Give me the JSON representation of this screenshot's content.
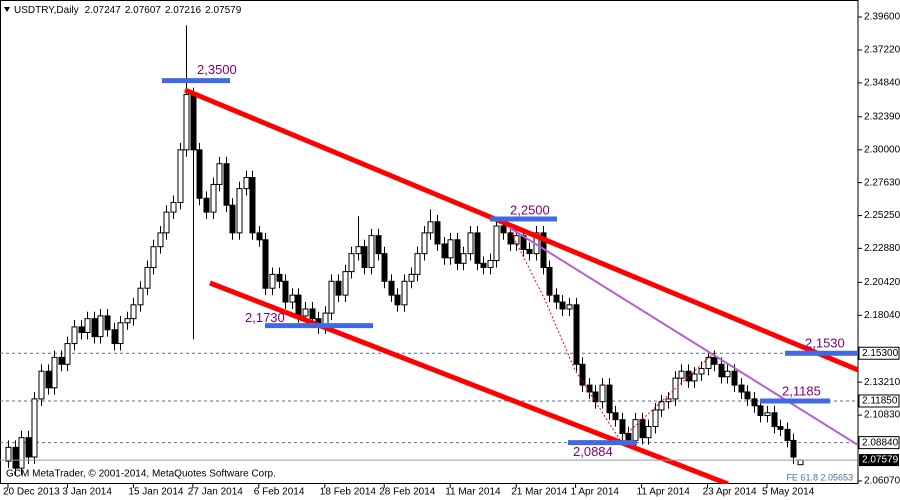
{
  "chart_data": {
    "type": "candlestick",
    "symbol": "USDTRY,Daily",
    "footer": "GCM MetaTrader, © 2001-2014, MetaQuotes Software Corp.",
    "fib_label": "FE 61.8 2.05653",
    "categories": [
      "20 Dec 2013",
      null,
      null,
      null,
      null,
      null,
      null,
      null,
      null,
      "3 Jan 2014",
      null,
      null,
      null,
      null,
      null,
      null,
      null,
      null,
      null,
      "15 Jan 2014",
      null,
      null,
      null,
      null,
      null,
      null,
      null,
      null,
      "27 Jan 2014",
      null,
      null,
      null,
      null,
      null,
      null,
      null,
      null,
      null,
      "6 Feb 2014",
      null,
      null,
      null,
      null,
      null,
      null,
      null,
      null,
      null,
      "18 Feb 2014",
      null,
      null,
      null,
      null,
      null,
      null,
      null,
      null,
      "28 Feb 2014",
      null,
      null,
      null,
      null,
      null,
      null,
      null,
      null,
      null,
      "11 Mar 2014",
      null,
      null,
      null,
      null,
      null,
      null,
      null,
      null,
      null,
      "21 Mar 2014",
      null,
      null,
      null,
      null,
      null,
      null,
      null,
      null,
      "1 Apr 2014",
      null,
      null,
      null,
      null,
      null,
      null,
      null,
      null,
      null,
      "11 Apr 2014",
      null,
      null,
      null,
      null,
      null,
      null,
      null,
      null,
      null,
      "23 Apr 2014",
      null,
      null,
      null,
      null,
      null,
      null,
      null,
      null,
      "5 May 2014",
      null,
      null,
      null,
      null,
      null
    ],
    "open": [
      2.075,
      2.085,
      2.07,
      2.092,
      2.078,
      2.12,
      2.14,
      2.128,
      2.15,
      2.145,
      2.16,
      2.172,
      2.168,
      2.178,
      2.165,
      2.18,
      2.17,
      2.16,
      2.175,
      2.178,
      2.188,
      2.2,
      2.215,
      2.23,
      2.24,
      2.255,
      2.262,
      2.3,
      2.34,
      2.3,
      2.265,
      2.255,
      2.275,
      2.29,
      2.26,
      2.24,
      2.272,
      2.28,
      2.24,
      2.235,
      2.2,
      2.21,
      2.205,
      2.19,
      2.195,
      2.18,
      2.185,
      2.178,
      2.172,
      2.182,
      2.205,
      2.195,
      2.212,
      2.225,
      2.23,
      2.215,
      2.238,
      2.225,
      2.205,
      2.195,
      2.188,
      2.205,
      2.21,
      2.225,
      2.24,
      2.248,
      2.232,
      2.222,
      2.235,
      2.218,
      2.225,
      2.24,
      2.218,
      2.215,
      2.22,
      2.245,
      2.24,
      2.232,
      2.238,
      2.228,
      2.225,
      2.24,
      2.215,
      2.195,
      2.19,
      2.185,
      2.188,
      2.145,
      2.13,
      2.125,
      2.118,
      2.13,
      2.11,
      2.105,
      2.095,
      2.09,
      2.105,
      2.092,
      2.1,
      2.112,
      2.118,
      2.12,
      2.135,
      2.14,
      2.133,
      2.138,
      2.142,
      2.15,
      2.145,
      2.136,
      2.14,
      2.13,
      2.125,
      2.12,
      2.115,
      2.108,
      2.11,
      2.1,
      2.098,
      2.09,
      2.07247
    ],
    "high": [
      2.09,
      2.09,
      2.097,
      2.097,
      2.125,
      2.145,
      2.145,
      2.155,
      2.155,
      2.165,
      2.177,
      2.177,
      2.183,
      2.183,
      2.185,
      2.185,
      2.175,
      2.18,
      2.183,
      2.193,
      2.205,
      2.22,
      2.235,
      2.245,
      2.26,
      2.267,
      2.305,
      2.39,
      2.345,
      2.305,
      2.27,
      2.28,
      2.295,
      2.295,
      2.265,
      2.277,
      2.285,
      2.285,
      2.245,
      2.24,
      2.215,
      2.215,
      2.21,
      2.2,
      2.2,
      2.19,
      2.19,
      2.183,
      2.187,
      2.21,
      2.21,
      2.217,
      2.23,
      2.252,
      2.235,
      2.243,
      2.243,
      2.23,
      2.21,
      2.2,
      2.21,
      2.215,
      2.23,
      2.245,
      2.257,
      2.253,
      2.237,
      2.24,
      2.24,
      2.23,
      2.245,
      2.245,
      2.223,
      2.225,
      2.25,
      2.25,
      2.245,
      2.243,
      2.243,
      2.233,
      2.245,
      2.245,
      2.22,
      2.2,
      2.195,
      2.193,
      2.193,
      2.15,
      2.135,
      2.13,
      2.135,
      2.135,
      2.115,
      2.11,
      2.1,
      2.11,
      2.11,
      2.105,
      2.117,
      2.123,
      2.125,
      2.14,
      2.145,
      2.145,
      2.143,
      2.147,
      2.155,
      2.155,
      2.15,
      2.145,
      2.145,
      2.135,
      2.13,
      2.125,
      2.12,
      2.115,
      2.115,
      2.105,
      2.103,
      2.095,
      2.07607
    ],
    "low": [
      2.07,
      2.065,
      2.065,
      2.073,
      2.073,
      2.115,
      2.123,
      2.123,
      2.14,
      2.14,
      2.155,
      2.163,
      2.163,
      2.16,
      2.16,
      2.165,
      2.155,
      2.155,
      2.17,
      2.173,
      2.183,
      2.195,
      2.21,
      2.225,
      2.235,
      2.25,
      2.257,
      2.295,
      2.163,
      2.26,
      2.25,
      2.25,
      2.27,
      2.255,
      2.235,
      2.235,
      2.267,
      2.235,
      2.23,
      2.195,
      2.195,
      2.2,
      2.185,
      2.185,
      2.175,
      2.175,
      2.173,
      2.167,
      2.167,
      2.177,
      2.19,
      2.19,
      2.207,
      2.22,
      2.21,
      2.21,
      2.22,
      2.2,
      2.19,
      2.183,
      2.183,
      2.2,
      2.205,
      2.22,
      2.235,
      2.227,
      2.217,
      2.217,
      2.213,
      2.213,
      2.22,
      2.213,
      2.21,
      2.21,
      2.215,
      2.235,
      2.227,
      2.227,
      2.223,
      2.22,
      2.22,
      2.21,
      2.19,
      2.185,
      2.18,
      2.18,
      2.14,
      2.125,
      2.12,
      2.113,
      2.113,
      2.105,
      2.1,
      2.09,
      2.085,
      2.085,
      2.087,
      2.087,
      2.095,
      2.107,
      2.113,
      2.115,
      2.13,
      2.128,
      2.128,
      2.133,
      2.137,
      2.14,
      2.131,
      2.131,
      2.125,
      2.12,
      2.115,
      2.11,
      2.103,
      2.103,
      2.095,
      2.093,
      2.085,
      2.073,
      2.07216
    ],
    "close": [
      2.085,
      2.07,
      2.092,
      2.078,
      2.12,
      2.14,
      2.128,
      2.15,
      2.145,
      2.16,
      2.172,
      2.168,
      2.178,
      2.165,
      2.18,
      2.17,
      2.16,
      2.175,
      2.178,
      2.188,
      2.2,
      2.215,
      2.23,
      2.24,
      2.255,
      2.262,
      2.3,
      2.34,
      2.3,
      2.265,
      2.255,
      2.275,
      2.29,
      2.26,
      2.24,
      2.272,
      2.28,
      2.24,
      2.235,
      2.2,
      2.21,
      2.205,
      2.19,
      2.195,
      2.18,
      2.185,
      2.178,
      2.172,
      2.182,
      2.205,
      2.195,
      2.212,
      2.225,
      2.23,
      2.215,
      2.238,
      2.225,
      2.205,
      2.195,
      2.188,
      2.205,
      2.21,
      2.225,
      2.24,
      2.248,
      2.232,
      2.222,
      2.235,
      2.218,
      2.225,
      2.24,
      2.218,
      2.215,
      2.22,
      2.245,
      2.24,
      2.232,
      2.238,
      2.228,
      2.225,
      2.24,
      2.215,
      2.195,
      2.19,
      2.185,
      2.188,
      2.145,
      2.13,
      2.125,
      2.118,
      2.13,
      2.11,
      2.105,
      2.095,
      2.09,
      2.105,
      2.092,
      2.1,
      2.112,
      2.118,
      2.12,
      2.135,
      2.14,
      2.133,
      2.138,
      2.142,
      2.15,
      2.145,
      2.136,
      2.14,
      2.13,
      2.125,
      2.12,
      2.115,
      2.108,
      2.11,
      2.1,
      2.098,
      2.09,
      2.078,
      2.07579
    ],
    "ylim": [
      2.0585,
      2.4083
    ],
    "yticks": [
      {
        "value": 2.396,
        "label": "2.39600"
      },
      {
        "value": 2.3722,
        "label": "2.37220"
      },
      {
        "value": 2.3484,
        "label": "2.34840"
      },
      {
        "value": 2.3239,
        "label": "2.32390"
      },
      {
        "value": 2.3,
        "label": "2.30000"
      },
      {
        "value": 2.2763,
        "label": "2.27630"
      },
      {
        "value": 2.2525,
        "label": "2.25250"
      },
      {
        "value": 2.2288,
        "label": "2.22880"
      },
      {
        "value": 2.2042,
        "label": "2.20420"
      },
      {
        "value": 2.1804,
        "label": "2.18040"
      },
      {
        "value": 2.1321,
        "label": "2.13210"
      },
      {
        "value": 2.1083,
        "label": "2.10830"
      },
      {
        "value": 2.0607,
        "label": "2.06070"
      }
    ],
    "hlines": [
      {
        "value": 2.153,
        "label": "2.15300"
      },
      {
        "value": 2.1185,
        "label": "2.11850"
      },
      {
        "value": 2.0884,
        "label": "2.08840"
      }
    ],
    "levels": [
      {
        "value": 2.35,
        "label": "2,3500"
      },
      {
        "value": 2.25,
        "label": "2,2500"
      },
      {
        "value": 2.173,
        "label": "2,1730"
      },
      {
        "value": 2.153,
        "label": "2,1530"
      },
      {
        "value": 2.1185,
        "label": "2,1185"
      },
      {
        "value": 2.0884,
        "label": "2,0884"
      }
    ],
    "bull_color": "#ffffff",
    "bear_color": "#000000",
    "hline_color": "#4a6fa5",
    "level_color": "#4169e1",
    "level_text_color": "#800080",
    "channel_color": "#ff0000",
    "trend_color": "#b45fd6"
  }
}
